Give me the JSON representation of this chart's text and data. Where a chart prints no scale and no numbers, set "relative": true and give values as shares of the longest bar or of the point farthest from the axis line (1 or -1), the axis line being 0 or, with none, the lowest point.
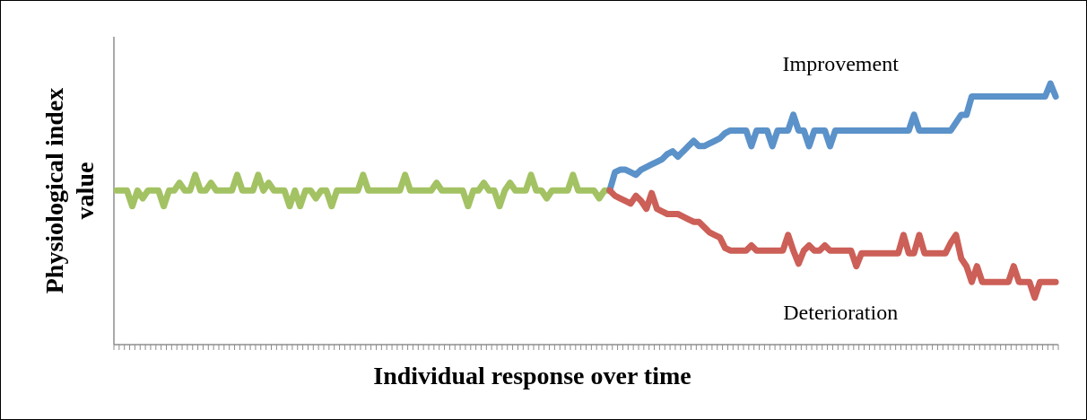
{
  "chart_data": {
    "type": "line",
    "relative": true,
    "xlabel": "Individual response over time",
    "ylabel": "Physiological index value",
    "categories": [
      null,
      null,
      null,
      null,
      null,
      null,
      null,
      null,
      null,
      null,
      null,
      null,
      null,
      null,
      null,
      null,
      null,
      null,
      null,
      null,
      null,
      null,
      null,
      null,
      null,
      null,
      null,
      null,
      null,
      null,
      null,
      null,
      null,
      null,
      null,
      null,
      null,
      null,
      null,
      null,
      null,
      null,
      null,
      null,
      null,
      null,
      null,
      null,
      null,
      null,
      null,
      null,
      null,
      null,
      null,
      null,
      null,
      null,
      null,
      null,
      null,
      null,
      null,
      null,
      null,
      null,
      null,
      null,
      null,
      null,
      null,
      null,
      null,
      null,
      null,
      null,
      null,
      null,
      null,
      null,
      null,
      null,
      null,
      null,
      null,
      null,
      null,
      null,
      null,
      null,
      null,
      null,
      null,
      null,
      null,
      null,
      null,
      null,
      null,
      null,
      null,
      null,
      null,
      null,
      null,
      null,
      null,
      null,
      null,
      null,
      null,
      null,
      null,
      null,
      null,
      null,
      null,
      null,
      null,
      null,
      null,
      null,
      null,
      null,
      null,
      null,
      null,
      null,
      null,
      null,
      null,
      null,
      null,
      null,
      null,
      null,
      null,
      null,
      null,
      null,
      null,
      null,
      null,
      null,
      null,
      null,
      null,
      null,
      null,
      null,
      null,
      null,
      null,
      null,
      null,
      null,
      null,
      null,
      null,
      null,
      null,
      null,
      null,
      null,
      null,
      null,
      null,
      null,
      null,
      null,
      null,
      null,
      null,
      null,
      null,
      null,
      null,
      null,
      null,
      null
    ],
    "line_style": "solid",
    "marker": "none",
    "series": [
      {
        "color": "#a3c263",
        "values": [
          0.59,
          0.59,
          0.59,
          0.53,
          0.59,
          0.56,
          0.59,
          0.59,
          0.59,
          0.53,
          0.59,
          0.59,
          0.62,
          0.59,
          0.59,
          0.65,
          0.59,
          0.59,
          0.62,
          0.59,
          0.59,
          0.59,
          0.59,
          0.65,
          0.59,
          0.59,
          0.59,
          0.65,
          0.59,
          0.62,
          0.59,
          0.59,
          0.59,
          0.53,
          0.59,
          0.53,
          0.59,
          0.59,
          0.56,
          0.59,
          0.59,
          0.53,
          0.59,
          0.59,
          0.59,
          0.59,
          0.59,
          0.65,
          0.59,
          0.59,
          0.59,
          0.59,
          0.59,
          0.59,
          0.59,
          0.65,
          0.59,
          0.59,
          0.59,
          0.59,
          0.59,
          0.62,
          0.59,
          0.59,
          0.59,
          0.59,
          0.59,
          0.53,
          0.59,
          0.59,
          0.62,
          0.59,
          0.59,
          0.53,
          0.59,
          0.62,
          0.59,
          0.59,
          0.59,
          0.65,
          0.59,
          0.59,
          0.56,
          0.59,
          0.59,
          0.59,
          0.59,
          0.65,
          0.59,
          0.59,
          0.59,
          0.59,
          0.56,
          0.59,
          0.59,
          null,
          null,
          null,
          null,
          null,
          null,
          null,
          null,
          null,
          null,
          null,
          null,
          null,
          null,
          null,
          null,
          null,
          null,
          null,
          null,
          null,
          null,
          null,
          null,
          null,
          null,
          null,
          null,
          null,
          null,
          null,
          null,
          null,
          null,
          null,
          null,
          null,
          null,
          null,
          null,
          null,
          null,
          null,
          null,
          null,
          null,
          null,
          null,
          null,
          null,
          null,
          null,
          null,
          null,
          null,
          null,
          null,
          null,
          null,
          null,
          null,
          null,
          null,
          null,
          null,
          null,
          null,
          null,
          null,
          null,
          null,
          null,
          null,
          null,
          null,
          null,
          null,
          null,
          null,
          null,
          null,
          null,
          null,
          null,
          null
        ]
      },
      {
        "name": "Improvement",
        "color": "#5b92c9",
        "values": [
          null,
          null,
          null,
          null,
          null,
          null,
          null,
          null,
          null,
          null,
          null,
          null,
          null,
          null,
          null,
          null,
          null,
          null,
          null,
          null,
          null,
          null,
          null,
          null,
          null,
          null,
          null,
          null,
          null,
          null,
          null,
          null,
          null,
          null,
          null,
          null,
          null,
          null,
          null,
          null,
          null,
          null,
          null,
          null,
          null,
          null,
          null,
          null,
          null,
          null,
          null,
          null,
          null,
          null,
          null,
          null,
          null,
          null,
          null,
          null,
          null,
          null,
          null,
          null,
          null,
          null,
          null,
          null,
          null,
          null,
          null,
          null,
          null,
          null,
          null,
          null,
          null,
          null,
          null,
          null,
          null,
          null,
          null,
          null,
          null,
          null,
          null,
          null,
          null,
          null,
          null,
          null,
          null,
          null,
          0.59,
          0.66,
          0.67,
          0.67,
          0.66,
          0.65,
          0.67,
          0.68,
          0.69,
          0.7,
          0.71,
          0.73,
          0.74,
          0.72,
          0.74,
          0.76,
          0.78,
          0.76,
          0.76,
          0.77,
          0.78,
          0.79,
          0.81,
          0.82,
          0.82,
          0.82,
          0.82,
          0.76,
          0.82,
          0.82,
          0.82,
          0.76,
          0.82,
          0.82,
          0.82,
          0.88,
          0.82,
          0.82,
          0.76,
          0.82,
          0.82,
          0.82,
          0.76,
          0.82,
          0.82,
          0.82,
          0.82,
          0.82,
          0.82,
          0.82,
          0.82,
          0.82,
          0.82,
          0.82,
          0.82,
          0.82,
          0.82,
          0.82,
          0.88,
          0.82,
          0.82,
          0.82,
          0.82,
          0.82,
          0.82,
          0.82,
          0.85,
          0.88,
          0.88,
          0.95,
          0.95,
          0.95,
          0.95,
          0.95,
          0.95,
          0.95,
          0.95,
          0.95,
          0.95,
          0.95,
          0.95,
          0.95,
          0.95,
          0.95,
          1,
          0.95
        ]
      },
      {
        "name": "Deterioration",
        "color": "#cc5f57",
        "values": [
          null,
          null,
          null,
          null,
          null,
          null,
          null,
          null,
          null,
          null,
          null,
          null,
          null,
          null,
          null,
          null,
          null,
          null,
          null,
          null,
          null,
          null,
          null,
          null,
          null,
          null,
          null,
          null,
          null,
          null,
          null,
          null,
          null,
          null,
          null,
          null,
          null,
          null,
          null,
          null,
          null,
          null,
          null,
          null,
          null,
          null,
          null,
          null,
          null,
          null,
          null,
          null,
          null,
          null,
          null,
          null,
          null,
          null,
          null,
          null,
          null,
          null,
          null,
          null,
          null,
          null,
          null,
          null,
          null,
          null,
          null,
          null,
          null,
          null,
          null,
          null,
          null,
          null,
          null,
          null,
          null,
          null,
          null,
          null,
          null,
          null,
          null,
          null,
          null,
          null,
          null,
          null,
          null,
          null,
          0.59,
          0.57,
          0.56,
          0.55,
          0.54,
          0.57,
          0.55,
          0.52,
          0.58,
          0.52,
          0.51,
          0.5,
          0.5,
          0.5,
          0.49,
          0.48,
          0.47,
          0.47,
          0.45,
          0.43,
          0.42,
          0.41,
          0.37,
          0.36,
          0.36,
          0.36,
          0.36,
          0.38,
          0.36,
          0.36,
          0.36,
          0.36,
          0.36,
          0.36,
          0.42,
          0.36,
          0.31,
          0.36,
          0.38,
          0.36,
          0.36,
          0.38,
          0.36,
          0.36,
          0.36,
          0.36,
          0.36,
          0.3,
          0.35,
          0.35,
          0.35,
          0.35,
          0.35,
          0.35,
          0.35,
          0.35,
          0.42,
          0.35,
          0.35,
          0.42,
          0.35,
          0.35,
          0.35,
          0.35,
          0.35,
          0.39,
          0.42,
          0.33,
          0.3,
          0.24,
          0.3,
          0.24,
          0.24,
          0.24,
          0.24,
          0.24,
          0.24,
          0.3,
          0.24,
          0.24,
          0.24,
          0.18,
          0.24,
          0.24,
          0.24,
          0.24
        ]
      }
    ]
  }
}
